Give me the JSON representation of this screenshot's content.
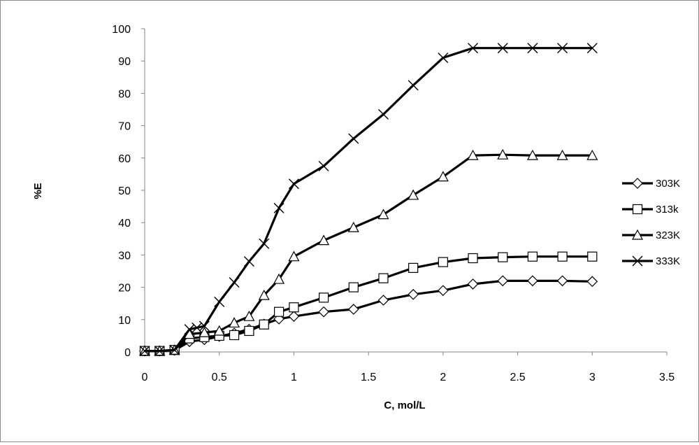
{
  "chart_data": {
    "type": "line",
    "xlabel": "C, mol/L",
    "ylabel": "%E",
    "xlim": [
      0,
      3.5
    ],
    "ylim": [
      0,
      100
    ],
    "x_ticks": [
      "0",
      "0.5",
      "1",
      "1.5",
      "2",
      "2.5",
      "3",
      "3.5"
    ],
    "y_ticks": [
      "0",
      "10",
      "20",
      "30",
      "40",
      "50",
      "60",
      "70",
      "80",
      "90",
      "100"
    ],
    "grid": false,
    "legend_position": "right",
    "line_color": "#000000",
    "series": [
      {
        "name": "303K",
        "marker": "diamond",
        "x": [
          0,
          0.1,
          0.2,
          0.3,
          0.4,
          0.5,
          0.6,
          0.7,
          0.8,
          0.9,
          1.0,
          1.2,
          1.4,
          1.6,
          1.8,
          2.0,
          2.2,
          2.4,
          2.6,
          2.8,
          3.0
        ],
        "y": [
          0.3,
          0.3,
          0.5,
          3.2,
          3.8,
          4.8,
          5.8,
          7.0,
          8.6,
          10.2,
          11.0,
          12.4,
          13.2,
          16.0,
          17.8,
          19.0,
          21.0,
          22.0,
          22.0,
          22.0,
          21.8
        ]
      },
      {
        "name": "313k",
        "marker": "square",
        "x": [
          0,
          0.1,
          0.2,
          0.3,
          0.4,
          0.5,
          0.6,
          0.7,
          0.8,
          0.9,
          1.0,
          1.2,
          1.4,
          1.6,
          1.8,
          2.0,
          2.2,
          2.4,
          2.6,
          2.8,
          3.0
        ],
        "y": [
          0.3,
          0.3,
          0.6,
          4.2,
          4.6,
          5.0,
          5.2,
          6.5,
          8.5,
          12.4,
          13.8,
          16.8,
          20.0,
          22.8,
          26.0,
          27.8,
          29.0,
          29.3,
          29.5,
          29.5,
          29.5
        ]
      },
      {
        "name": "323K",
        "marker": "triangle",
        "x": [
          0,
          0.1,
          0.2,
          0.3,
          0.4,
          0.5,
          0.6,
          0.7,
          0.8,
          0.9,
          1.0,
          1.2,
          1.4,
          1.6,
          1.8,
          2.0,
          2.2,
          2.4,
          2.6,
          2.8,
          3.0
        ],
        "y": [
          0.3,
          0.3,
          0.6,
          5.5,
          6.0,
          6.5,
          9.0,
          11.0,
          17.5,
          22.5,
          29.5,
          34.5,
          38.5,
          42.5,
          48.5,
          54.2,
          60.8,
          61.0,
          60.8,
          60.8,
          60.8
        ]
      },
      {
        "name": "333K",
        "marker": "x",
        "x": [
          0,
          0.1,
          0.2,
          0.3,
          0.35,
          0.4,
          0.5,
          0.6,
          0.7,
          0.8,
          0.9,
          1.0,
          1.2,
          1.4,
          1.6,
          1.8,
          2.0,
          2.2,
          2.4,
          2.6,
          2.8,
          3.0
        ],
        "y": [
          0.3,
          0.3,
          0.6,
          7.0,
          7.5,
          8.0,
          15.5,
          21.5,
          28.0,
          33.5,
          44.5,
          52.0,
          57.5,
          66.0,
          73.5,
          82.5,
          91.0,
          94.0,
          94.0,
          94.0,
          94.0,
          94.0
        ]
      }
    ]
  }
}
